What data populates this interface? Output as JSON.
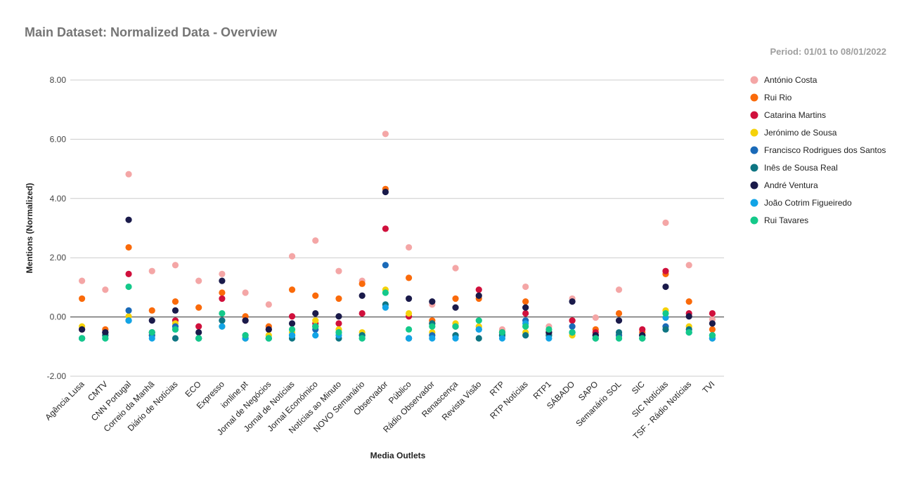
{
  "page": {
    "title": "Main Dataset: Normalized Data - Overview",
    "subtitle": "Period: 01/01 to 08/01/2022"
  },
  "chart_data": {
    "type": "scatter",
    "xlabel": "Media Outlets",
    "ylabel": "Mentions (Normalized)",
    "ylim": [
      -2,
      8
    ],
    "yticks": [
      "-2.00",
      "0.00",
      "2.00",
      "4.00",
      "6.00",
      "8.00"
    ],
    "ytick_values": [
      -2,
      0,
      2,
      4,
      6,
      8
    ],
    "grid": true,
    "legend_position": "right",
    "categories": [
      "Agência Lusa",
      "CMTV",
      "CNN Portugal",
      "Correio da Manhã",
      "Diário de Notícias",
      "ECO",
      "Expresso",
      "ionline.pt",
      "Jornal de Negócios",
      "Jornal de Notícias",
      "Jornal Económico",
      "Notícias ao Minuto",
      "NOVO Semanário",
      "Observador",
      "Público",
      "Rádio Observador",
      "Renascença",
      "Revista Visão",
      "RTP",
      "RTP Notícias",
      "RTP1",
      "SÁBADO",
      "SAPO",
      "Semanário SOL",
      "SIC",
      "SIC Notícias",
      "TSF - Rádio Notícias",
      "TVI"
    ],
    "series": [
      {
        "name": "António Costa",
        "color": "#f4a6a6",
        "values": [
          1.22,
          0.92,
          4.82,
          1.55,
          1.75,
          1.22,
          1.45,
          0.82,
          0.42,
          2.05,
          2.58,
          1.55,
          1.22,
          6.18,
          2.35,
          0.42,
          1.65,
          0.72,
          -0.42,
          1.02,
          -0.32,
          0.62,
          -0.02,
          0.92,
          -0.62,
          3.18,
          1.75,
          -0.08
        ]
      },
      {
        "name": "Rui Rio",
        "color": "#fa6a0a",
        "values": [
          0.62,
          -0.42,
          2.35,
          0.22,
          0.52,
          0.32,
          0.82,
          0.02,
          -0.32,
          0.92,
          0.72,
          0.62,
          1.12,
          4.32,
          1.32,
          -0.12,
          0.62,
          0.62,
          -0.52,
          0.52,
          -0.52,
          -0.12,
          -0.42,
          0.12,
          -0.52,
          1.45,
          0.52,
          -0.42
        ]
      },
      {
        "name": "Catarina Martins",
        "color": "#d0103c",
        "values": [
          -0.42,
          -0.52,
          1.45,
          -0.52,
          -0.12,
          -0.32,
          0.62,
          -0.12,
          -0.42,
          0.02,
          -0.22,
          -0.22,
          0.12,
          2.98,
          0.02,
          -0.22,
          -0.32,
          0.92,
          -0.62,
          0.12,
          -0.52,
          -0.12,
          -0.52,
          -0.62,
          -0.42,
          1.55,
          0.12,
          0.12
        ]
      },
      {
        "name": "Jerónimo de Sousa",
        "color": "#f5d20a",
        "values": [
          -0.32,
          -0.62,
          0.02,
          -0.62,
          -0.22,
          -0.72,
          -0.32,
          -0.72,
          -0.62,
          -0.52,
          -0.12,
          -0.42,
          -0.52,
          0.92,
          0.12,
          -0.52,
          -0.22,
          -0.32,
          -0.52,
          -0.52,
          -0.62,
          -0.62,
          -0.72,
          -0.62,
          -0.72,
          0.22,
          -0.32,
          -0.72
        ]
      },
      {
        "name": "Francisco Rodrigues dos Santos",
        "color": "#1a6ab8",
        "values": [
          -0.72,
          -0.52,
          0.22,
          -0.62,
          -0.32,
          -0.72,
          -0.12,
          -0.62,
          -0.72,
          -0.62,
          -0.42,
          -0.52,
          -0.62,
          1.75,
          -0.72,
          -0.62,
          -0.62,
          -0.42,
          -0.62,
          -0.12,
          -0.62,
          -0.32,
          -0.62,
          -0.62,
          -0.62,
          -0.32,
          -0.52,
          -0.72
        ]
      },
      {
        "name": "Inês de Sousa Real",
        "color": "#0e7582",
        "values": [
          -0.72,
          -0.62,
          -0.12,
          -0.52,
          -0.72,
          -0.72,
          -0.12,
          -0.72,
          -0.72,
          -0.72,
          -0.32,
          -0.72,
          -0.62,
          0.42,
          -0.72,
          -0.22,
          -0.62,
          -0.72,
          -0.62,
          -0.62,
          -0.62,
          -0.52,
          -0.72,
          -0.52,
          -0.72,
          -0.42,
          -0.42,
          -0.62
        ]
      },
      {
        "name": "André Ventura",
        "color": "#1a1a4a",
        "values": [
          -0.42,
          -0.52,
          3.28,
          -0.12,
          0.22,
          -0.52,
          1.22,
          -0.12,
          -0.42,
          -0.22,
          0.12,
          0.02,
          0.72,
          4.22,
          0.62,
          0.52,
          0.32,
          0.72,
          -0.52,
          0.32,
          -0.52,
          0.52,
          -0.62,
          -0.12,
          -0.62,
          1.02,
          0.02,
          -0.22
        ]
      },
      {
        "name": "João Cotrim Figueiredo",
        "color": "#12a4e6",
        "values": [
          -0.72,
          -0.72,
          -0.12,
          -0.72,
          -0.42,
          -0.72,
          -0.32,
          -0.72,
          -0.72,
          -0.62,
          -0.62,
          -0.62,
          -0.72,
          0.32,
          -0.72,
          -0.72,
          -0.72,
          -0.42,
          -0.72,
          -0.22,
          -0.72,
          -0.52,
          -0.72,
          -0.72,
          -0.72,
          -0.02,
          -0.52,
          -0.72
        ]
      },
      {
        "name": "Rui Tavares",
        "color": "#14c98a",
        "values": [
          -0.72,
          -0.72,
          1.02,
          -0.52,
          -0.42,
          -0.72,
          0.12,
          -0.62,
          -0.72,
          -0.42,
          -0.32,
          -0.52,
          -0.72,
          0.82,
          -0.42,
          -0.32,
          -0.32,
          -0.12,
          -0.52,
          -0.32,
          -0.42,
          -0.52,
          -0.72,
          -0.72,
          -0.72,
          0.12,
          -0.52,
          -0.62
        ]
      }
    ]
  }
}
